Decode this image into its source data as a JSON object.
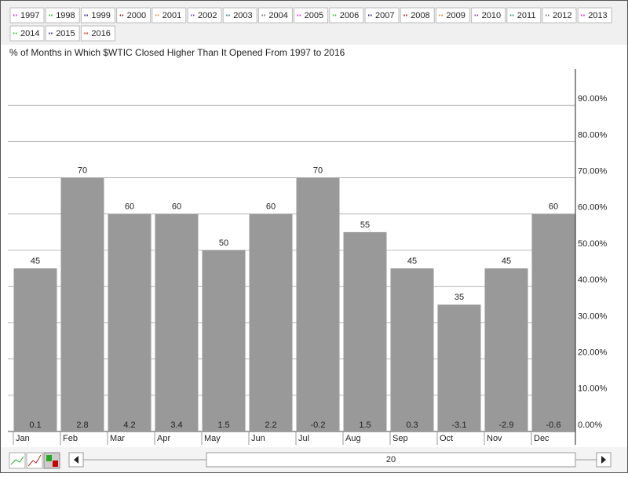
{
  "toolbar": {
    "years": [
      {
        "label": "1997",
        "color": "#e020e0"
      },
      {
        "label": "1998",
        "color": "#20c020"
      },
      {
        "label": "1999",
        "color": "#202090"
      },
      {
        "label": "2000",
        "color": "#802020"
      },
      {
        "label": "2001",
        "color": "#f08020"
      },
      {
        "label": "2002",
        "color": "#8040c0"
      },
      {
        "label": "2003",
        "color": "#208080"
      },
      {
        "label": "2004",
        "color": "#707070"
      },
      {
        "label": "2005",
        "color": "#e020e0"
      },
      {
        "label": "2006",
        "color": "#20c020"
      },
      {
        "label": "2007",
        "color": "#202090"
      },
      {
        "label": "2008",
        "color": "#a01010"
      },
      {
        "label": "2009",
        "color": "#f08020"
      },
      {
        "label": "2010",
        "color": "#8040c0"
      },
      {
        "label": "2011",
        "color": "#208080"
      },
      {
        "label": "2012",
        "color": "#707070"
      },
      {
        "label": "2013",
        "color": "#e020e0"
      },
      {
        "label": "2014",
        "color": "#20c020"
      },
      {
        "label": "2015",
        "color": "#202090"
      },
      {
        "label": "2016",
        "color": "#e02020"
      }
    ]
  },
  "chart_data": {
    "type": "bar",
    "title": "% of Months in Which $WTIC Closed Higher Than It Opened From 1997 to 2016",
    "categories": [
      "Jan",
      "Feb",
      "Mar",
      "Apr",
      "May",
      "Jun",
      "Jul",
      "Aug",
      "Sep",
      "Oct",
      "Nov",
      "Dec"
    ],
    "values": [
      45,
      70,
      60,
      60,
      50,
      60,
      70,
      55,
      45,
      35,
      45,
      60
    ],
    "avg_change": [
      0.1,
      2.8,
      4.2,
      3.4,
      1.5,
      2.2,
      -0.2,
      1.5,
      0.3,
      -3.1,
      -2.9,
      -0.6
    ],
    "color": "#999999",
    "ylim": [
      0,
      100
    ],
    "yticks": [
      {
        "value": 0,
        "label": "0.00%"
      },
      {
        "value": 10,
        "label": "10.00%"
      },
      {
        "value": 20,
        "label": "20.00%"
      },
      {
        "value": 30,
        "label": "30.00%"
      },
      {
        "value": 40,
        "label": "40.00%"
      },
      {
        "value": 50,
        "label": "50.00%"
      },
      {
        "value": 60,
        "label": "60.00%"
      },
      {
        "value": 70,
        "label": "70.00%"
      },
      {
        "value": 80,
        "label": "80.00%"
      },
      {
        "value": 90,
        "label": "90.00%"
      }
    ],
    "grid": true
  },
  "scrollbar": {
    "value": 20
  }
}
